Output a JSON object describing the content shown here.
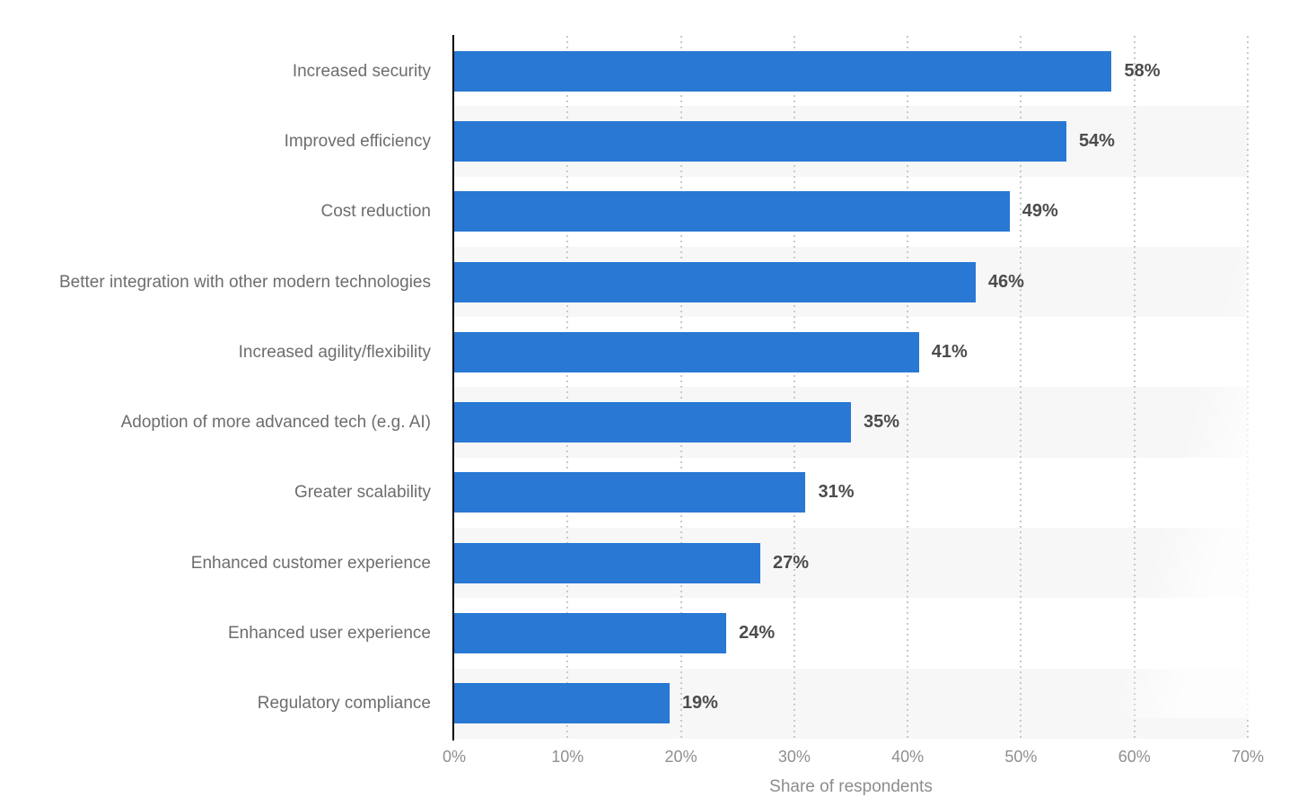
{
  "chart_data": {
    "type": "bar",
    "orientation": "horizontal",
    "title": "",
    "xlabel": "Share of respondents",
    "ylabel": "",
    "categories": [
      "Increased security",
      "Improved efficiency",
      "Cost reduction",
      "Better integration with other modern technologies",
      "Increased agility/flexibility",
      "Adoption of more advanced tech (e.g. AI)",
      "Greater scalability",
      "Enhanced customer experience",
      "Enhanced user experience",
      "Regulatory compliance"
    ],
    "values": [
      58,
      54,
      49,
      46,
      41,
      35,
      31,
      27,
      24,
      19
    ],
    "value_labels": [
      "58%",
      "54%",
      "49%",
      "46%",
      "41%",
      "35%",
      "31%",
      "27%",
      "24%",
      "19%"
    ],
    "xlim": [
      0,
      70
    ],
    "x_ticks": [
      "0%",
      "10%",
      "20%",
      "30%",
      "40%",
      "50%",
      "60%",
      "70%"
    ],
    "grid": "vertical-dotted",
    "legend": "none",
    "colors": {
      "bar": "#2878d4",
      "row_stripe": "#f7f7f7",
      "gridline": "#c9c9c9",
      "axis_line": "#000000",
      "value_label": "#4c4c4c",
      "category_label": "#6d6d6d",
      "tick_label": "#8f8f8f",
      "axis_title": "#8d8d8d",
      "background": "#ffffff"
    }
  }
}
